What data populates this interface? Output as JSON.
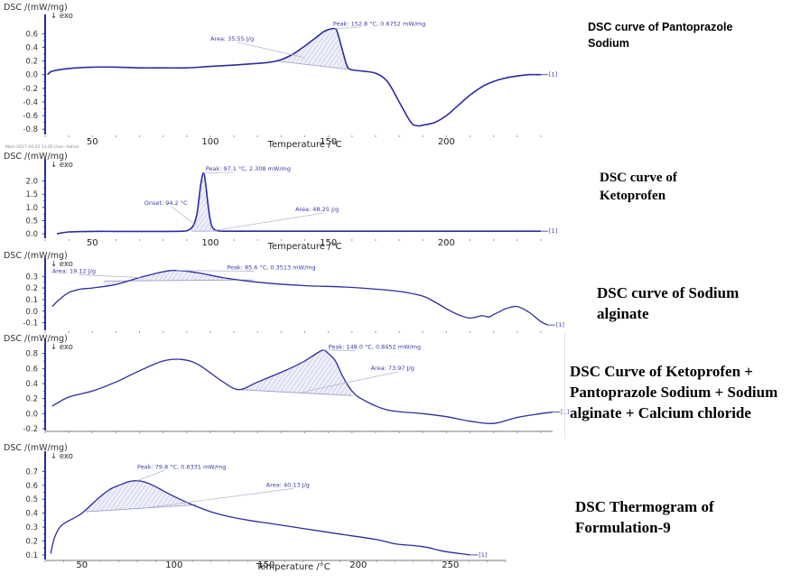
{
  "figure": {
    "labels": [
      "DSC curve of Pantoprazole Sodium",
      "DSC curve of Ketoprofen",
      "DSC curve of Sodium alginate",
      "DSC Curve of Ketoprofen + Pantoprazole Sodium + Sodium alginate + Calcium chloride",
      "DSC Thermogram of Formulation-9"
    ],
    "colors": {
      "curve": "#2b2ba0",
      "fill": "#c9c9e6",
      "annotation": "#3a3aa8",
      "axis": "#2a2aa8"
    },
    "meta_text": "Main   2017-04-25 11:05   User: Admin"
  },
  "chart_data": [
    {
      "type": "line",
      "title": "DSC curve of Pantoprazole Sodium",
      "ylabel": "DSC /(mW/mg)",
      "exo_label": "↓ exo",
      "xlabel": "Temperature /°C",
      "xlim": [
        30,
        245
      ],
      "ylim": [
        -0.85,
        0.75
      ],
      "xticks": [
        50,
        100,
        150,
        200
      ],
      "yticks": [
        0.6,
        0.4,
        0.2,
        0.0,
        -0.2,
        -0.4,
        -0.6,
        -0.8
      ],
      "ytick_labels": [
        "0.6",
        "0.4",
        "0.2",
        "0.0",
        "-0.2",
        "-0.4",
        "-0.6",
        "-0.8"
      ],
      "series": [
        {
          "name": "[1]",
          "x": [
            31,
            33,
            40,
            50,
            60,
            70,
            80,
            90,
            100,
            110,
            118,
            125,
            130,
            135,
            140,
            145,
            148,
            150,
            152.8,
            154,
            156,
            158,
            160,
            165,
            170,
            175,
            180,
            185,
            188,
            190,
            195,
            200,
            205,
            210,
            215,
            220,
            225,
            230,
            235,
            240
          ],
          "y": [
            0.0,
            0.05,
            0.09,
            0.11,
            0.11,
            0.1,
            0.1,
            0.1,
            0.12,
            0.14,
            0.16,
            0.18,
            0.22,
            0.3,
            0.42,
            0.55,
            0.63,
            0.66,
            0.6752,
            0.6,
            0.35,
            0.12,
            0.07,
            0.05,
            0.02,
            -0.1,
            -0.4,
            -0.7,
            -0.75,
            -0.74,
            -0.7,
            -0.6,
            -0.45,
            -0.3,
            -0.18,
            -0.1,
            -0.05,
            -0.02,
            0.0,
            0.0
          ]
        }
      ],
      "shaded_area": {
        "x_from": 128,
        "x_to": 158,
        "baseline_from": 0.2,
        "baseline_to": 0.08
      },
      "annotations": [
        {
          "text": "Peak: 152.8 °C, 0.6752 mW/mg",
          "x": 152.8,
          "y": 0.6752,
          "label_x": 152,
          "label_y": 0.72
        },
        {
          "text": "Area: 35.55 J/g",
          "x": 140,
          "y": 0.25,
          "label_x": 100,
          "label_y": 0.5
        }
      ],
      "end_label": "[1]"
    },
    {
      "type": "line",
      "title": "DSC curve of Ketoprofen",
      "ylabel": "DSC /(mW/mg)",
      "exo_label": "↓ exo",
      "xlabel": "Temperature /°C",
      "xlim": [
        30,
        245
      ],
      "ylim": [
        -0.1,
        2.5
      ],
      "xticks": [
        50,
        100,
        150,
        200
      ],
      "yticks": [
        2.0,
        1.5,
        1.0,
        0.5,
        0.0
      ],
      "ytick_labels": [
        "2.0",
        "1.5",
        "1.0",
        "0.5",
        "0.0"
      ],
      "series": [
        {
          "name": "[1]",
          "x": [
            35,
            40,
            50,
            60,
            70,
            80,
            88,
            91,
            93,
            94.2,
            95,
            96,
            97.1,
            98,
            99,
            100,
            101,
            103,
            106,
            110,
            150,
            200,
            240
          ],
          "y": [
            0.0,
            0.07,
            0.09,
            0.09,
            0.09,
            0.09,
            0.1,
            0.15,
            0.35,
            0.7,
            1.2,
            1.9,
            2.308,
            1.9,
            1.1,
            0.5,
            0.22,
            0.12,
            0.1,
            0.1,
            0.1,
            0.1,
            0.1
          ]
        }
      ],
      "shaded_area": {
        "x_from": 92,
        "x_to": 104,
        "baseline_from": 0.1,
        "baseline_to": 0.1
      },
      "annotations": [
        {
          "text": "Peak: 97.1 °C, 2.308 mW/mg",
          "x": 97.1,
          "y": 2.308,
          "label_x": 98,
          "label_y": 2.4
        },
        {
          "text": "Onset: 94.2 °C",
          "x": 94.2,
          "y": 0.3,
          "label_x": 72,
          "label_y": 1.1
        },
        {
          "text": "Area: 48.25 J/g",
          "x": 100,
          "y": 0.1,
          "label_x": 136,
          "label_y": 0.85
        }
      ],
      "end_label": "[1]"
    },
    {
      "type": "line",
      "title": "DSC curve of Sodium alginate",
      "ylabel": "DSC /(mW/mg)",
      "exo_label": "↓ exo",
      "xlabel": "",
      "xlim": [
        30,
        245
      ],
      "ylim": [
        -0.15,
        0.38
      ],
      "xticks": [],
      "yticks": [
        0.3,
        0.2,
        0.1,
        0.0,
        -0.1
      ],
      "ytick_labels": [
        "0.3",
        "0.2",
        "0.1",
        "0.0",
        "-0.1"
      ],
      "series": [
        {
          "name": "[1]",
          "x": [
            33,
            36,
            40,
            45,
            50,
            60,
            70,
            80,
            85.6,
            95,
            105,
            120,
            140,
            155,
            170,
            180,
            190,
            195,
            200,
            205,
            210,
            215,
            218,
            220,
            223,
            225,
            230,
            235,
            240,
            243
          ],
          "y": [
            0.04,
            0.1,
            0.16,
            0.19,
            0.2,
            0.23,
            0.29,
            0.34,
            0.3513,
            0.33,
            0.29,
            0.25,
            0.22,
            0.21,
            0.19,
            0.17,
            0.13,
            0.08,
            0.02,
            -0.03,
            -0.06,
            -0.04,
            -0.05,
            -0.03,
            0.0,
            0.02,
            0.04,
            -0.01,
            -0.09,
            -0.12
          ]
        }
      ],
      "shaded_area": {
        "x_from": 55,
        "x_to": 118,
        "baseline_from": 0.26,
        "baseline_to": 0.27
      },
      "annotations": [
        {
          "text": "Peak: 85.6 °C, 0.3513 mW/mg",
          "x": 85.6,
          "y": 0.3513,
          "label_x": 107,
          "label_y": 0.36
        },
        {
          "text": "Area: 19.12 J/g",
          "x": 70,
          "y": 0.29,
          "label_x": 33,
          "label_y": 0.33
        }
      ],
      "end_label": "[1]"
    },
    {
      "type": "line",
      "title": "DSC Curve of Ketoprofen + Pantoprazole Sodium + Sodium alginate + Calcium chloride",
      "ylabel": "DSC /(mW/mg)",
      "exo_label": "↓ exo",
      "xlabel": "",
      "xlim": [
        30,
        245
      ],
      "ylim": [
        -0.2,
        0.88
      ],
      "xticks": [],
      "yticks": [
        0.8,
        0.6,
        0.4,
        0.2,
        0.0,
        -0.2
      ],
      "ytick_labels": [
        "0.8",
        "0.6",
        "0.4",
        "0.2",
        "0.0",
        "-0.2"
      ],
      "series": [
        {
          "name": "[1]",
          "x": [
            33,
            40,
            50,
            60,
            70,
            80,
            88,
            95,
            105,
            112,
            120,
            130,
            135,
            140,
            146,
            148,
            150,
            153,
            156,
            160,
            165,
            175,
            190,
            200,
            210,
            220,
            230,
            240,
            245
          ],
          "y": [
            0.1,
            0.22,
            0.3,
            0.42,
            0.57,
            0.7,
            0.72,
            0.65,
            0.43,
            0.32,
            0.42,
            0.55,
            0.62,
            0.7,
            0.82,
            0.8452,
            0.8,
            0.7,
            0.5,
            0.3,
            0.18,
            0.05,
            0.0,
            -0.04,
            -0.1,
            -0.13,
            -0.05,
            0.0,
            0.02
          ]
        }
      ],
      "shaded_area": {
        "x_from": 112,
        "x_to": 160,
        "baseline_from": 0.32,
        "baseline_to": 0.24
      },
      "annotations": [
        {
          "text": "Peak: 148.0 °C, 0.8452 mW/mg",
          "x": 148.0,
          "y": 0.8452,
          "label_x": 150,
          "label_y": 0.86
        },
        {
          "text": "Area: 73.97 J/g",
          "x": 138,
          "y": 0.28,
          "label_x": 168,
          "label_y": 0.58
        }
      ],
      "end_label": "[1]"
    },
    {
      "type": "line",
      "title": "DSC Thermogram of Formulation-9",
      "ylabel": "DSC /(mW/mg)",
      "exo_label": "↓ exo",
      "xlabel": "Temperature /°C",
      "xlim": [
        30,
        280
      ],
      "ylim": [
        0.08,
        0.78
      ],
      "xticks": [
        50,
        100,
        150,
        200,
        250
      ],
      "yticks": [
        0.7,
        0.6,
        0.5,
        0.4,
        0.3,
        0.2,
        0.1
      ],
      "ytick_labels": [
        "0.7",
        "0.6",
        "0.5",
        "0.4",
        "0.3",
        "0.2",
        "0.1"
      ],
      "series": [
        {
          "name": "[1]",
          "x": [
            33,
            35,
            38,
            42,
            45,
            50,
            55,
            60,
            65,
            70,
            75,
            79.8,
            85,
            90,
            100,
            110,
            120,
            130,
            140,
            150,
            170,
            190,
            210,
            220,
            235,
            245,
            255,
            261
          ],
          "y": [
            0.11,
            0.22,
            0.3,
            0.34,
            0.36,
            0.4,
            0.46,
            0.52,
            0.57,
            0.6,
            0.625,
            0.6331,
            0.62,
            0.59,
            0.52,
            0.46,
            0.41,
            0.375,
            0.35,
            0.33,
            0.29,
            0.25,
            0.21,
            0.18,
            0.16,
            0.13,
            0.11,
            0.1
          ]
        }
      ],
      "shaded_area": {
        "x_from": 52,
        "x_to": 112,
        "baseline_from": 0.41,
        "baseline_to": 0.46
      },
      "annotations": [
        {
          "text": "Peak: 79.8 °C, 0.6331 mW/mg",
          "x": 79.8,
          "y": 0.6331,
          "label_x": 80,
          "label_y": 0.72
        },
        {
          "text": "Area: 40.13 J/g",
          "x": 80,
          "y": 0.43,
          "label_x": 150,
          "label_y": 0.59
        }
      ],
      "end_label": "[1]"
    }
  ]
}
